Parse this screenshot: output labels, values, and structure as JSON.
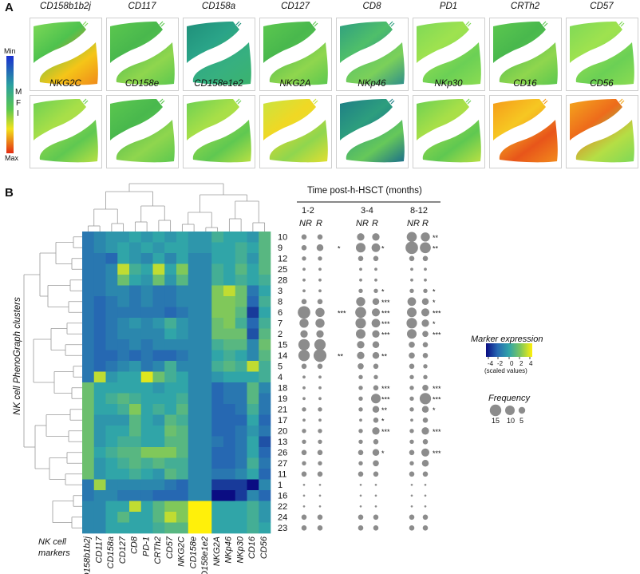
{
  "panel_a": {
    "label": "A",
    "legend": {
      "top": "Min",
      "bottom": "Max",
      "mid": [
        "M",
        "F",
        "I"
      ]
    },
    "tiles": [
      {
        "name": "CD158b1b2j",
        "theme": "green_hot"
      },
      {
        "name": "CD117",
        "theme": "green"
      },
      {
        "name": "CD158a",
        "theme": "teal"
      },
      {
        "name": "CD127",
        "theme": "green"
      },
      {
        "name": "CD8",
        "theme": "teal_mix"
      },
      {
        "name": "PD1",
        "theme": "green_light"
      },
      {
        "name": "CRTh2",
        "theme": "green"
      },
      {
        "name": "CD57",
        "theme": "green_light"
      },
      {
        "name": "NKG2C",
        "theme": "green_mix"
      },
      {
        "name": "CD158e",
        "theme": "green"
      },
      {
        "name": "CD158e1e2",
        "theme": "green_mix"
      },
      {
        "name": "NKG2A",
        "theme": "yellow_mix"
      },
      {
        "name": "NKp46",
        "theme": "teal_dark"
      },
      {
        "name": "NKp30",
        "theme": "green_mix"
      },
      {
        "name": "CD16",
        "theme": "hot"
      },
      {
        "name": "CD56",
        "theme": "hot_top"
      }
    ]
  },
  "panel_b": {
    "label": "B",
    "y_axis_label": "NK cell PhenoGraph clusters",
    "x_axis_label": [
      "NK cell",
      "markers"
    ],
    "time_title": "Time post-h-HSCT (months)",
    "time_groups": [
      "1-2",
      "3-4",
      "8-12"
    ],
    "response_labels": [
      "NR",
      "R"
    ],
    "legend_expression": {
      "title": "Marker expression",
      "ticks": [
        "-4",
        "-2",
        "0",
        "2",
        "4"
      ],
      "subtitle": "(scaled values)"
    },
    "legend_frequency": {
      "title": "Frequency",
      "sizes": [
        "15",
        "10",
        "5"
      ]
    }
  },
  "chart_data": {
    "type": "heatmap",
    "title": "NK cell PhenoGraph clusters x NK cell markers",
    "markers": [
      "CD158b1b2j",
      "CD117",
      "CD158a",
      "CD127",
      "CD8",
      "PD-1",
      "CRTh2",
      "CD57",
      "NKG2C",
      "CD158e",
      "CD158e1e2",
      "NKG2A",
      "NKp46",
      "NKp30",
      "CD16",
      "CD56"
    ],
    "clusters": [
      "10",
      "9",
      "12",
      "25",
      "28",
      "3",
      "8",
      "6",
      "7",
      "2",
      "15",
      "14",
      "5",
      "4",
      "18",
      "19",
      "21",
      "17",
      "20",
      "13",
      "26",
      "27",
      "11",
      "1",
      "16",
      "22",
      "24",
      "23"
    ],
    "value_range": [
      -4,
      4
    ],
    "values": [
      [
        -1.5,
        -1,
        -0.5,
        -0.5,
        0,
        -0.5,
        0,
        -0.5,
        0,
        -0.5,
        -0.5,
        0.5,
        0,
        0,
        -0.5,
        1
      ],
      [
        -1.5,
        -1,
        -0.5,
        0,
        -0.5,
        0,
        -0.5,
        0,
        0,
        -0.5,
        -0.5,
        0,
        0,
        0.5,
        0,
        1
      ],
      [
        -1.5,
        -1.5,
        -2,
        0,
        -0.5,
        -1,
        0,
        -1,
        0,
        -1,
        -1,
        0,
        0,
        0.5,
        -0.5,
        1
      ],
      [
        -1.5,
        -1.5,
        -1,
        3,
        0.5,
        0,
        3,
        0,
        2,
        -1,
        -1,
        0.5,
        0,
        1,
        0,
        1
      ],
      [
        -1.5,
        -1.5,
        -1,
        1.5,
        0,
        -0.5,
        1.5,
        -0.5,
        1,
        -1,
        -1,
        0.5,
        0,
        0.5,
        0,
        0.5
      ],
      [
        -1.5,
        -1.5,
        -1,
        -1,
        -1.5,
        -1,
        -1.5,
        -1.5,
        -1,
        -1,
        -1,
        2,
        3,
        1.5,
        -1.5,
        0
      ],
      [
        -1.5,
        -2,
        -1.5,
        -1,
        -1.5,
        -1,
        -1.5,
        -1.5,
        -1,
        -1,
        -1,
        2,
        2,
        1.5,
        -2,
        0.5
      ],
      [
        -1.5,
        -2,
        -1.5,
        -1.5,
        -1.5,
        -1.5,
        -1.5,
        -2,
        -1.5,
        -1,
        -1,
        2,
        2,
        1,
        -3,
        0
      ],
      [
        -1.5,
        -2,
        -1.5,
        -1,
        -0.5,
        -1,
        -0.5,
        0.5,
        -0.5,
        -1,
        -1,
        1.5,
        2,
        0.5,
        -2,
        0.5
      ],
      [
        -1.5,
        -2,
        -1.5,
        -1,
        -1,
        -1,
        -1,
        0,
        -0.5,
        -1,
        -1,
        1.5,
        1.5,
        1.5,
        -2.5,
        1
      ],
      [
        -1.5,
        -2,
        -1.5,
        -1.5,
        -1,
        -1.5,
        -1,
        -1,
        -1,
        -1,
        -1,
        0.5,
        1,
        1,
        -1,
        1.5
      ],
      [
        -1.5,
        -2,
        -2,
        -1.5,
        -2,
        -1.5,
        -2,
        -2,
        -1.5,
        -1,
        -1,
        0,
        0.5,
        0,
        -1,
        1
      ],
      [
        -1.5,
        -2,
        -1.5,
        -1,
        -0.5,
        -1.5,
        -1,
        0.5,
        -1,
        -1,
        -1,
        0.5,
        1,
        0.5,
        3,
        0.5
      ],
      [
        -1.5,
        3,
        -0.5,
        0,
        0,
        3.5,
        1.5,
        0.5,
        0,
        -1,
        -1,
        -0.5,
        0,
        0,
        0,
        0.5
      ],
      [
        1.5,
        0,
        0,
        0,
        0,
        0,
        -0.5,
        0,
        0,
        -1,
        -1,
        -2,
        -1.5,
        -1.5,
        1,
        -1
      ],
      [
        1.5,
        0,
        0.5,
        1,
        0.5,
        0,
        0,
        0,
        0.5,
        -1,
        -1,
        -2,
        -1.5,
        -1.5,
        1,
        -1.5
      ],
      [
        1.5,
        0,
        0,
        0.5,
        2,
        0,
        0.5,
        0,
        1,
        -1,
        -1,
        -2,
        -2,
        -1.5,
        0.5,
        -1.5
      ],
      [
        1.5,
        -0.5,
        -0.5,
        -0.5,
        1,
        0,
        -0.5,
        1,
        0.5,
        -1,
        -1,
        -2,
        -2,
        -2,
        0,
        -2
      ],
      [
        1.5,
        -0.5,
        0,
        0,
        1,
        0,
        0,
        1.5,
        1,
        -1,
        -1,
        -2,
        -2,
        -1.5,
        -0.5,
        -1.5
      ],
      [
        1.5,
        -0.5,
        0,
        0.5,
        0.5,
        0,
        0,
        1,
        1,
        -1,
        -1,
        -1.5,
        -2,
        -1.5,
        0,
        -2.5
      ],
      [
        1.5,
        0,
        0.5,
        1,
        1,
        2,
        2,
        2,
        1,
        -1,
        -1,
        -2,
        -2,
        -1.5,
        0,
        -2
      ],
      [
        1.5,
        -0.5,
        0,
        0.5,
        1,
        0.5,
        1,
        0.5,
        0.5,
        -1,
        -1,
        -2,
        -2,
        -1.5,
        0.5,
        -1.5
      ],
      [
        1.5,
        -0.5,
        0,
        0,
        0.5,
        0,
        -0.5,
        1,
        0.5,
        -1,
        -1,
        -1.5,
        -1.5,
        -1,
        0,
        -2
      ],
      [
        -1.5,
        2.5,
        -1,
        -1,
        -1,
        -1,
        -1,
        -1.5,
        -2,
        -1,
        -1,
        -3,
        -3,
        -3,
        -4,
        -1
      ],
      [
        -1.5,
        -1,
        -1,
        -1.5,
        -1.5,
        -1.5,
        -2,
        -2,
        -2,
        -1,
        -1,
        -4,
        -4,
        -3,
        -1,
        -2
      ],
      [
        -1,
        -1,
        0,
        0,
        3,
        0,
        1,
        2,
        2,
        4,
        4,
        0,
        0,
        0,
        0.5,
        -0.5
      ],
      [
        -1,
        -1,
        0,
        1,
        0,
        0,
        1,
        3,
        2,
        4,
        4,
        0,
        0,
        0,
        0.5,
        -0.5
      ],
      [
        -1,
        -1,
        0,
        0,
        0,
        0,
        0.5,
        1,
        1,
        4,
        4,
        0,
        0,
        0,
        0.5,
        0
      ]
    ],
    "frequency": {
      "columns": [
        "1-2 NR",
        "1-2 R",
        "3-4 NR",
        "3-4 R",
        "8-12 NR",
        "8-12 R"
      ],
      "values": [
        [
          3,
          3,
          6,
          6,
          11,
          9
        ],
        [
          3,
          5,
          10,
          8,
          17,
          13
        ],
        [
          2,
          2,
          3,
          3,
          3,
          3
        ],
        [
          1,
          1,
          1,
          1,
          1,
          1
        ],
        [
          1,
          1,
          1,
          1,
          1,
          1
        ],
        [
          1,
          1,
          2,
          2,
          2,
          2
        ],
        [
          3,
          3,
          9,
          5,
          8,
          5
        ],
        [
          17,
          9,
          13,
          7,
          10,
          7
        ],
        [
          9,
          9,
          12,
          8,
          12,
          6
        ],
        [
          6,
          6,
          10,
          6,
          10,
          4
        ],
        [
          14,
          14,
          6,
          5,
          4,
          3
        ],
        [
          14,
          18,
          6,
          5,
          4,
          3
        ],
        [
          3,
          3,
          4,
          3,
          3,
          2
        ],
        [
          1,
          1,
          2,
          2,
          2,
          2
        ],
        [
          1,
          1,
          2,
          3,
          2,
          4
        ],
        [
          1,
          1,
          2,
          10,
          2,
          14
        ],
        [
          2,
          2,
          2,
          5,
          2,
          5
        ],
        [
          1,
          1,
          1,
          3,
          1,
          3
        ],
        [
          2,
          2,
          2,
          6,
          2,
          6
        ],
        [
          2,
          2,
          2,
          3,
          2,
          3
        ],
        [
          3,
          3,
          3,
          5,
          3,
          7
        ],
        [
          2,
          2,
          2,
          4,
          2,
          5
        ],
        [
          3,
          3,
          3,
          3,
          3,
          3
        ],
        [
          0.5,
          0.5,
          0.5,
          0.5,
          0.5,
          0.5
        ],
        [
          0.5,
          0.5,
          0.5,
          0.5,
          0.5,
          0.5
        ],
        [
          0.5,
          0.5,
          0.5,
          0.5,
          0.5,
          0.5
        ],
        [
          3,
          3,
          3,
          3,
          3,
          3
        ],
        [
          3,
          3,
          3,
          3,
          3,
          3
        ]
      ]
    },
    "significance": [
      [
        "",
        "**"
      ],
      [
        "*",
        "**"
      ],
      [
        "",
        ""
      ],
      [
        "",
        ""
      ],
      [
        "",
        ""
      ],
      [
        "*",
        "*"
      ],
      [
        "***",
        "*"
      ],
      [
        "***",
        "***"
      ],
      [
        "***",
        "*"
      ],
      [
        "***",
        "***"
      ],
      [
        "",
        ""
      ],
      [
        "**",
        ""
      ],
      [
        "",
        ""
      ],
      [
        "",
        ""
      ],
      [
        "***",
        "***"
      ],
      [
        "***",
        "***"
      ],
      [
        "**",
        "*"
      ],
      [
        "*",
        ""
      ],
      [
        "***",
        "***"
      ],
      [
        "",
        ""
      ],
      [
        "*",
        "***"
      ],
      [
        "",
        ""
      ],
      [
        "",
        ""
      ],
      [
        "",
        ""
      ],
      [
        "",
        ""
      ],
      [
        "",
        ""
      ],
      [
        "",
        ""
      ],
      [
        "",
        ""
      ]
    ],
    "significance_1_2": [
      "",
      "*",
      "",
      "",
      "",
      "",
      "",
      "***",
      "",
      "",
      "",
      "**",
      "",
      "",
      "",
      "",
      "",
      "",
      "",
      "",
      "",
      "",
      "",
      "",
      "",
      "",
      "",
      ""
    ]
  }
}
